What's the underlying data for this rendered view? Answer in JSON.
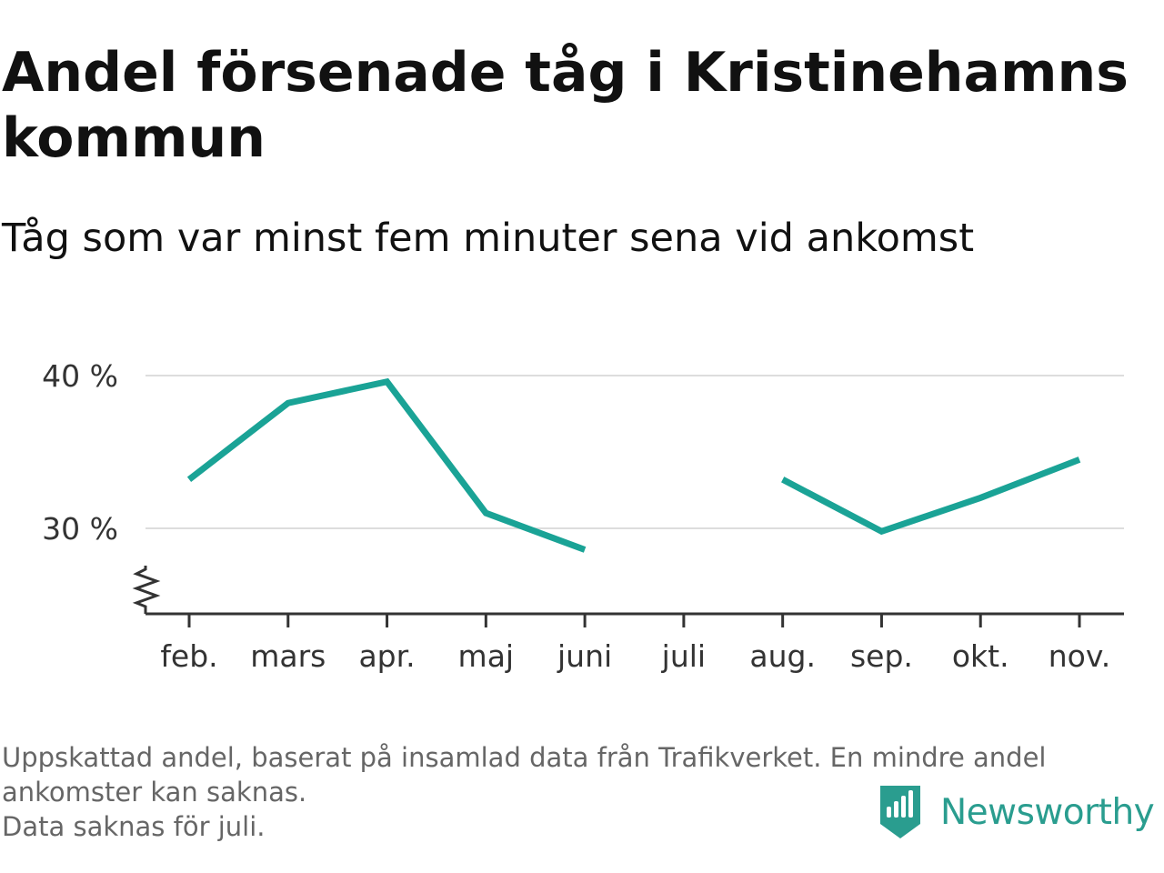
{
  "title": "Andel försenade tåg i Kristinehamns kommun",
  "subtitle": "Tåg som var minst fem minuter sena vid ankomst",
  "footnote": {
    "line1": "Uppskattad andel, baserat på insamlad data från Trafikverket. En mindre andel",
    "line2": "ankomster kan saknas.",
    "line3": "Data saknas för juli."
  },
  "brand": {
    "name": "Newsworthy",
    "icon": "newsworthy-logo-icon",
    "color": "#2a9d8f"
  },
  "colors": {
    "line": "#1aa396",
    "grid": "#dddddd",
    "axis": "#333333"
  },
  "chart_data": {
    "type": "line",
    "title": "Andel försenade tåg i Kristinehamns kommun",
    "subtitle": "Tåg som var minst fem minuter sena vid ankomst",
    "xlabel": "",
    "ylabel": "",
    "categories": [
      "feb.",
      "mars",
      "apr.",
      "maj",
      "juni",
      "juli",
      "aug.",
      "sep.",
      "okt.",
      "nov."
    ],
    "series": [
      {
        "values": [
          33.2,
          38.2,
          39.6,
          31.0,
          28.6,
          null,
          33.2,
          29.8,
          32.0,
          34.5
        ]
      }
    ],
    "yticks": [
      30,
      40
    ],
    "ytick_labels": [
      "30 %",
      "40 %"
    ],
    "ylim": [
      24.4,
      41
    ],
    "axis_break": true,
    "grid": true,
    "legend": "none"
  }
}
